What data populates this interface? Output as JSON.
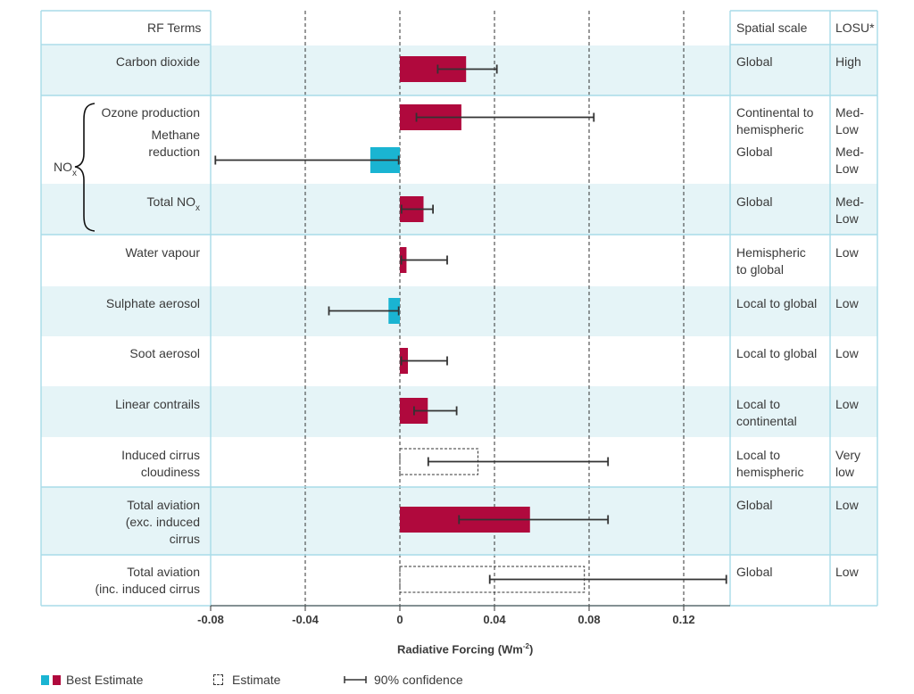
{
  "headers": {
    "terms": "RF Terms",
    "scale": "Spatial scale",
    "losu": "LOSU*"
  },
  "nox_group_label": "NO",
  "nox_sub": "x",
  "rows": [
    {
      "term": [
        "Carbon dioxide"
      ],
      "scale": [
        "Global"
      ],
      "losu": [
        "High"
      ],
      "shaded": true
    },
    {
      "term": [
        "Ozone production"
      ],
      "scale": [
        "Continental to",
        "hemispheric"
      ],
      "losu": [
        "Med-",
        "Low"
      ],
      "shaded": false
    },
    {
      "term": [
        "Methane",
        "reduction"
      ],
      "scale": [
        "Global"
      ],
      "losu": [
        "Med-",
        "Low"
      ],
      "shaded": false
    },
    {
      "term": [
        "Total NO"
      ],
      "term_sub": "x",
      "scale": [
        "Global"
      ],
      "losu": [
        "Med-",
        "Low"
      ],
      "shaded": true
    },
    {
      "term": [
        "Water vapour"
      ],
      "scale": [
        "Hemispheric",
        "to global"
      ],
      "losu": [
        "Low"
      ],
      "shaded": false
    },
    {
      "term": [
        "Sulphate aerosol"
      ],
      "scale": [
        "Local to global"
      ],
      "losu": [
        "Low"
      ],
      "shaded": true
    },
    {
      "term": [
        "Soot aerosol"
      ],
      "scale": [
        "Local to global"
      ],
      "losu": [
        "Low"
      ],
      "shaded": false
    },
    {
      "term": [
        "Linear contrails"
      ],
      "scale": [
        "Local to",
        "continental"
      ],
      "losu": [
        "Low"
      ],
      "shaded": true
    },
    {
      "term": [
        "Induced cirrus",
        "cloudiness"
      ],
      "scale": [
        "Local to",
        "hemispheric"
      ],
      "losu": [
        "Very",
        "low"
      ],
      "shaded": false
    },
    {
      "term": [
        "Total aviation",
        "(exc. induced",
        "cirrus"
      ],
      "scale": [
        "Global"
      ],
      "losu": [
        "Low"
      ],
      "shaded": true
    },
    {
      "term": [
        "Total aviation",
        "(inc. induced cirrus"
      ],
      "scale": [
        "Global"
      ],
      "losu": [
        "Low"
      ],
      "shaded": false
    }
  ],
  "legend": {
    "best": "Best Estimate",
    "estimate": "Estimate",
    "confidence": "90% confidence"
  },
  "colors": {
    "positive": "#b0093d",
    "negative": "#1ab4d2",
    "shade": "#e5f4f7",
    "grid": "#a8dce8",
    "axis": "#333333"
  },
  "chart_data": {
    "type": "bar",
    "orientation": "horizontal",
    "xlabel": "Radiative Forcing (Wm",
    "xlabel_sup": "-2",
    "xlabel_close": ")",
    "xlim": [
      -0.08,
      0.14
    ],
    "xticks": [
      -0.08,
      -0.04,
      0,
      0.04,
      0.08,
      0.12
    ],
    "xtick_labels": [
      "-0.08",
      "-0.04",
      "0",
      "0.04",
      "0.08",
      "0.12"
    ],
    "gridlines": [
      -0.04,
      0.04,
      0.08,
      0.12
    ],
    "categories": [
      "Carbon dioxide",
      "Ozone production",
      "Methane reduction",
      "Total NOx",
      "Water vapour",
      "Sulphate aerosol",
      "Soot aerosol",
      "Linear contrails",
      "Induced cirrus cloudiness",
      "Total aviation (exc. induced cirrus",
      "Total aviation (inc. induced cirrus"
    ],
    "series": [
      {
        "name": "Best Estimate",
        "values": [
          0.028,
          0.026,
          -0.0125,
          0.01,
          0.0028,
          -0.0048,
          0.0034,
          0.0118,
          null,
          0.055,
          null
        ]
      },
      {
        "name": "Estimate",
        "values": [
          null,
          null,
          null,
          null,
          null,
          null,
          null,
          null,
          0.033,
          null,
          0.078
        ]
      },
      {
        "name": "90% confidence low",
        "values": [
          0.016,
          0.007,
          -0.078,
          0.0007,
          0.0006,
          -0.03,
          0.0006,
          0.006,
          0.012,
          0.025,
          0.038
        ]
      },
      {
        "name": "90% confidence high",
        "values": [
          0.041,
          0.082,
          -0.0005,
          0.014,
          0.02,
          -0.0005,
          0.02,
          0.024,
          0.088,
          0.088,
          0.138
        ]
      }
    ]
  }
}
